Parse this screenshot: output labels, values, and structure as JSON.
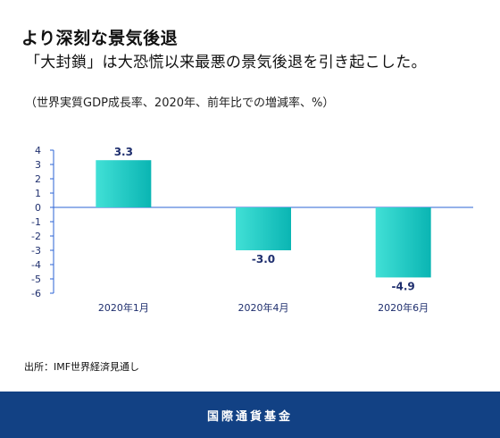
{
  "header": {
    "title": "より深刻な景気後退",
    "subtitle": "「大封鎖」は大恐慌以来最悪の景気後退を引き起こした。"
  },
  "chart_note": "（世界実質GDP成長率、2020年、前年比での増減率、%）",
  "chart_data": {
    "type": "bar",
    "categories": [
      "2020年1月",
      "2020年4月",
      "2020年6月"
    ],
    "values": [
      3.3,
      -3.0,
      -4.9
    ],
    "data_labels": [
      "3.3",
      "-3.0",
      "-4.9"
    ],
    "ylim": [
      -6,
      4
    ],
    "yticks": [
      4,
      3,
      2,
      1,
      0,
      -1,
      -2,
      -3,
      -4,
      -5,
      -6
    ],
    "grid": false,
    "colors": {
      "bar_light": "#41e0d6",
      "bar_dark": "#0ab5b3",
      "zero_line": "#2b63d6",
      "tick_text": "#1f2f6e"
    }
  },
  "source": "出所：IMF世界経済見通し",
  "footer": {
    "org": "国際通貨基金",
    "bg_color": "#124184"
  }
}
